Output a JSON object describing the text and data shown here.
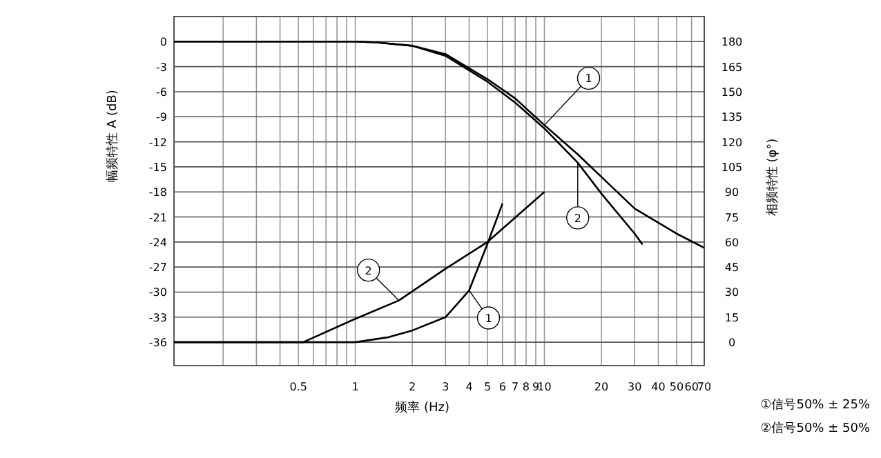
{
  "chart_data": {
    "type": "line",
    "xlabel": "频率 (Hz)",
    "ylabel": "幅频特性 A (dB)",
    "y2label": "相频特性 (φ°)",
    "log": "x",
    "grid": true,
    "line_style": "solid",
    "marker": "none",
    "xlim": [
      0.11,
      70
    ],
    "xticks": [
      {
        "value": 0.2,
        "label": null
      },
      {
        "value": 0.3,
        "label": null
      },
      {
        "value": 0.4,
        "label": null
      },
      0.5,
      {
        "value": 0.6,
        "label": null
      },
      {
        "value": 0.7,
        "label": null
      },
      {
        "value": 0.8,
        "label": null
      },
      {
        "value": 0.9,
        "label": null
      },
      1,
      2,
      3,
      4,
      5,
      6,
      7,
      8,
      9,
      10,
      20,
      30,
      40,
      50,
      60,
      70
    ],
    "ylim": [
      -38.8,
      3
    ],
    "yticks": [
      -36,
      -33,
      -30,
      -27,
      -24,
      -21,
      -18,
      -15,
      -12,
      -9,
      -6,
      -3,
      0
    ],
    "y2lim": [
      -14,
      195
    ],
    "y2ticks": [
      0,
      15,
      30,
      45,
      60,
      75,
      90,
      105,
      120,
      135,
      150,
      165,
      180
    ],
    "series": [
      {
        "name": "1",
        "color": "#000000",
        "x": [
          0.11,
          1,
          1.3,
          2,
          3,
          5,
          7,
          10,
          15,
          20,
          30,
          50,
          70
        ],
        "values": [
          0,
          0,
          -0.1,
          -0.5,
          -1.5,
          -4.5,
          -6.8,
          -10,
          -13.5,
          -16.2,
          -20,
          -23,
          -24.7
        ]
      },
      {
        "name": "2",
        "color": "#000000",
        "x": [
          0.11,
          1,
          1.3,
          2,
          3,
          5,
          7,
          10,
          15,
          20,
          30,
          33
        ],
        "values": [
          0,
          0,
          -0.1,
          -0.5,
          -1.7,
          -4.8,
          -7.3,
          -10.4,
          -14.5,
          -18.2,
          -23,
          -24.3
        ]
      },
      {
        "name": "1",
        "color": "#000000",
        "axis": "y2",
        "x": [
          0.11,
          1,
          1.5,
          2,
          3,
          4,
          5,
          6
        ],
        "values": [
          0,
          0,
          3,
          7,
          15,
          31,
          59,
          83
        ]
      },
      {
        "name": "2",
        "color": "#000000",
        "axis": "y2",
        "x": [
          0.11,
          0.53,
          1,
          1.7,
          3,
          5,
          10
        ],
        "values": [
          0,
          0,
          14,
          25,
          44,
          60,
          90
        ]
      }
    ],
    "annotations": [
      "①信号50% ± 25%",
      "②信号50% ± 50%"
    ]
  }
}
